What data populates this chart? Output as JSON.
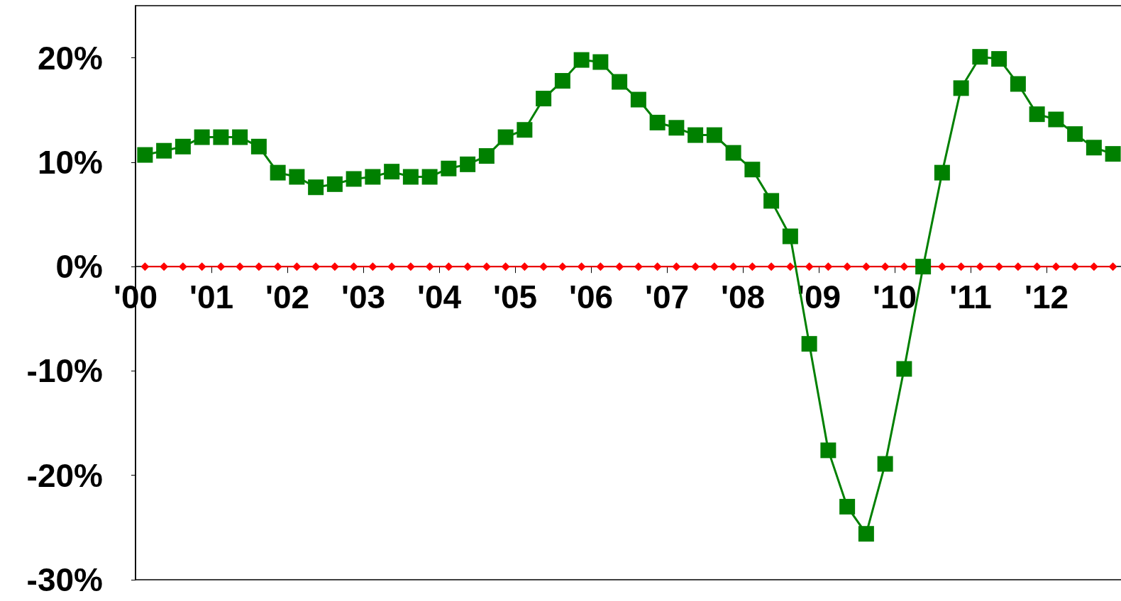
{
  "chart_data": {
    "type": "line",
    "x": [
      2000.125,
      2000.375,
      2000.625,
      2000.875,
      2001.125,
      2001.375,
      2001.625,
      2001.875,
      2002.125,
      2002.375,
      2002.625,
      2002.875,
      2003.125,
      2003.375,
      2003.625,
      2003.875,
      2004.125,
      2004.375,
      2004.625,
      2004.875,
      2005.125,
      2005.375,
      2005.625,
      2005.875,
      2006.125,
      2006.375,
      2006.625,
      2006.875,
      2007.125,
      2007.375,
      2007.625,
      2007.875,
      2008.125,
      2008.375,
      2008.625,
      2008.875,
      2009.125,
      2009.375,
      2009.625,
      2009.875,
      2010.125,
      2010.375,
      2010.625,
      2010.875,
      2011.125,
      2011.375,
      2011.625,
      2011.875,
      2012.125,
      2012.375,
      2012.625,
      2012.875
    ],
    "series": [
      {
        "color": "#008000",
        "marker": "square",
        "values": [
          10.7,
          11.1,
          11.5,
          12.4,
          12.4,
          12.4,
          11.5,
          9.0,
          8.6,
          7.6,
          7.9,
          8.4,
          8.6,
          9.1,
          8.6,
          8.6,
          9.4,
          9.8,
          10.6,
          12.4,
          13.1,
          16.1,
          17.8,
          19.8,
          19.6,
          17.7,
          16.0,
          13.8,
          13.3,
          12.6,
          12.6,
          10.9,
          9.3,
          6.3,
          2.9,
          -7.4,
          -17.6,
          -23.0,
          -25.6,
          -18.9,
          -9.8,
          0.0,
          9.0,
          17.1,
          20.1,
          19.9,
          17.5,
          14.6,
          14.1,
          12.7,
          11.4,
          10.8
        ]
      },
      {
        "color": "#ff0000",
        "marker": "diamond",
        "values": [
          0,
          0,
          0,
          0,
          0,
          0,
          0,
          0,
          0,
          0,
          0,
          0,
          0,
          0,
          0,
          0,
          0,
          0,
          0,
          0,
          0,
          0,
          0,
          0,
          0,
          0,
          0,
          0,
          0,
          0,
          0,
          0,
          0,
          0,
          0,
          0,
          0,
          0,
          0,
          0,
          0,
          0,
          0,
          0,
          0,
          0,
          0,
          0,
          0,
          0,
          0,
          0
        ]
      }
    ],
    "xlim": [
      2000,
      2013
    ],
    "xticks": [
      {
        "value": 2000,
        "label": "'00"
      },
      {
        "value": 2001,
        "label": "'01"
      },
      {
        "value": 2002,
        "label": "'02"
      },
      {
        "value": 2003,
        "label": "'03"
      },
      {
        "value": 2004,
        "label": "'04"
      },
      {
        "value": 2005,
        "label": "'05"
      },
      {
        "value": 2006,
        "label": "'06"
      },
      {
        "value": 2007,
        "label": "'07"
      },
      {
        "value": 2008,
        "label": "'08"
      },
      {
        "value": 2009,
        "label": "'09"
      },
      {
        "value": 2010,
        "label": "'10"
      },
      {
        "value": 2011,
        "label": "'11"
      },
      {
        "value": 2012,
        "label": "'12"
      }
    ],
    "ylim": [
      -30,
      25
    ],
    "yticks": [
      {
        "value": -30,
        "label": "-30%"
      },
      {
        "value": -20,
        "label": "-20%"
      },
      {
        "value": -10,
        "label": "-10%"
      },
      {
        "value": 0,
        "label": "0%"
      },
      {
        "value": 10,
        "label": "10%"
      },
      {
        "value": 20,
        "label": "20%"
      }
    ],
    "grid": false,
    "line_style": "solid"
  }
}
